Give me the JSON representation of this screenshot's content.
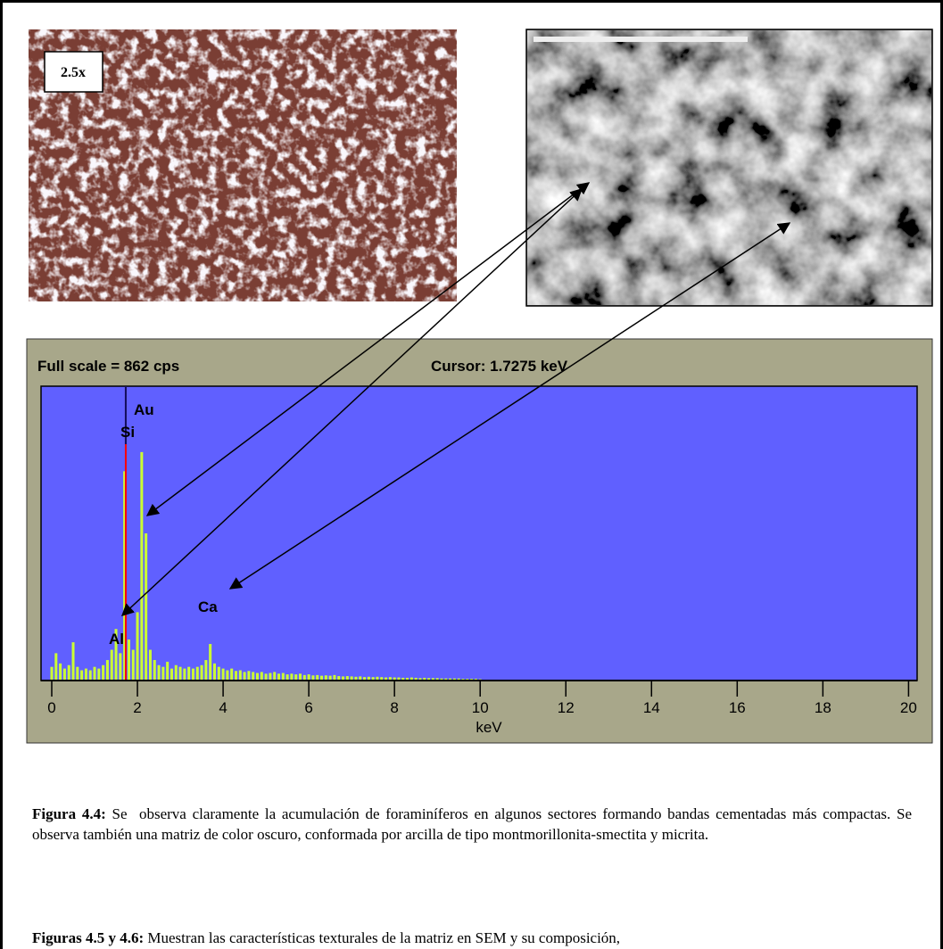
{
  "figures": {
    "micrograph_label": "2.5x"
  },
  "chart_data": {
    "type": "bar",
    "header_left": "Full scale = 862  cps",
    "header_right": "Cursor:  1.7275 keV",
    "xlabel": "keV",
    "x": [
      0,
      0.1,
      0.2,
      0.3,
      0.4,
      0.5,
      0.6,
      0.7,
      0.8,
      0.9,
      1,
      1.1,
      1.2,
      1.3,
      1.4,
      1.5,
      1.6,
      1.7,
      1.8,
      1.9,
      2,
      2.1,
      2.2,
      2.3,
      2.4,
      2.5,
      2.6,
      2.7,
      2.8,
      2.9,
      3,
      3.1,
      3.2,
      3.3,
      3.4,
      3.5,
      3.6,
      3.7,
      3.8,
      3.9,
      4,
      4.1,
      4.2,
      4.3,
      4.4,
      4.5,
      4.6,
      4.7,
      4.8,
      4.9,
      5,
      5.1,
      5.2,
      5.3,
      5.4,
      5.5,
      5.6,
      5.7,
      5.8,
      5.9,
      6,
      6.1,
      6.2,
      6.3,
      6.4,
      6.5,
      6.6,
      6.7,
      6.8,
      6.9,
      7,
      7.1,
      7.2,
      7.3,
      7.4,
      7.5,
      7.6,
      7.7,
      7.8,
      7.9,
      8,
      8.1,
      8.2,
      8.3,
      8.4,
      8.5,
      8.6,
      8.7,
      8.8,
      8.9,
      9,
      9.1,
      9.2,
      9.3,
      9.4,
      9.5,
      9.6,
      9.7,
      9.8,
      9.9,
      10
    ],
    "values": [
      40,
      80,
      50,
      35,
      45,
      112,
      40,
      30,
      35,
      30,
      40,
      35,
      45,
      60,
      90,
      151,
      80,
      613,
      120,
      90,
      200,
      669,
      431,
      90,
      60,
      45,
      40,
      55,
      35,
      45,
      40,
      35,
      40,
      35,
      40,
      45,
      60,
      107,
      50,
      40,
      35,
      30,
      35,
      28,
      30,
      25,
      28,
      25,
      22,
      25,
      20,
      22,
      25,
      20,
      22,
      18,
      20,
      18,
      20,
      16,
      18,
      15,
      16,
      14,
      15,
      14,
      16,
      13,
      12,
      13,
      12,
      11,
      12,
      10,
      11,
      10,
      11,
      10,
      9,
      10,
      9,
      9,
      8,
      8,
      9,
      8,
      7,
      8,
      7,
      7,
      7,
      6,
      6,
      6,
      6,
      6,
      5,
      5,
      5,
      5,
      4
    ],
    "color": "#ccff33",
    "background": "#6060ff",
    "xlim": [
      -0.25,
      20.2
    ],
    "ylim": [
      0,
      862
    ],
    "xticks": [
      0,
      2,
      4,
      6,
      8,
      10,
      12,
      14,
      16,
      18,
      20
    ],
    "cursor": 1.7275,
    "cursor_color": "#ff0000",
    "peak_labels": [
      "Au",
      "Si",
      "Al",
      "Ca"
    ]
  },
  "caption": {
    "paragraphs": [
      {
        "lead": "Figura 4.4:",
        "text": " Se  observa claramente la acumulación de foraminíferos en algunos sectores formando bandas cementadas más compactas. Se observa también una matriz de color oscuro, conformada por arcilla de tipo montmorillonita-smectita y micrita."
      },
      {
        "lead": "Figuras 4.5 y 4.6:",
        "text": " Muestran las características texturales de la matriz en SEM y su composición,"
      }
    ]
  }
}
